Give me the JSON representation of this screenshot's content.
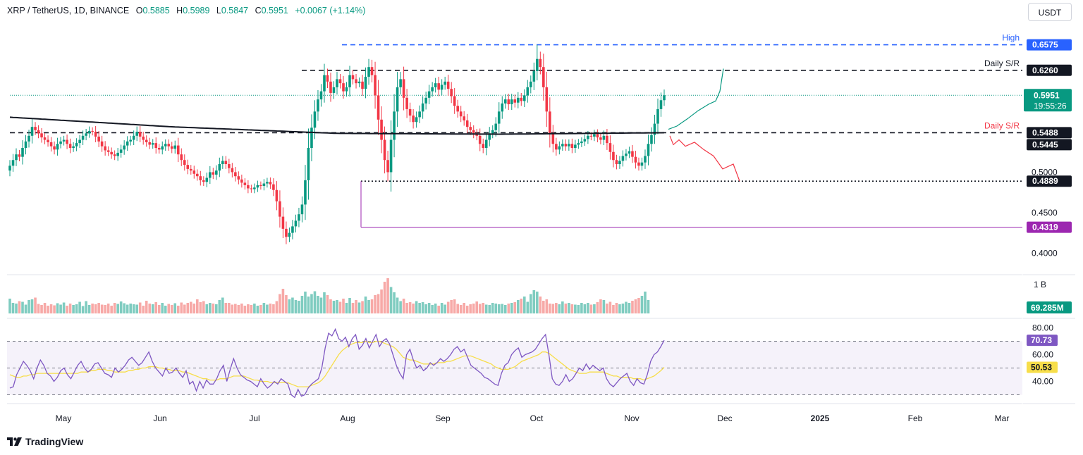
{
  "header": {
    "symbol": "XRP / TetherUS, 1D, BINANCE",
    "open_label": "O",
    "open": "0.5885",
    "high_label": "H",
    "high": "0.5989",
    "low_label": "L",
    "low": "0.5847",
    "close_label": "C",
    "close": "0.5951",
    "change": "+0.0067 (+1.14%)"
  },
  "currency_button": "USDT",
  "branding": {
    "name": "TradingView",
    "icon": "tradingview-logo-icon"
  },
  "colors": {
    "up": "#089981",
    "down": "#f23645",
    "ma": "#131722",
    "rsi": "#7e57c2",
    "rsi_ma": "#f7de4a",
    "high_line": "#2962ff",
    "support": "#9c27b0"
  },
  "chart_data": [
    {
      "type": "candlestick",
      "x_labels": [
        "May",
        "Jun",
        "Jul",
        "Aug",
        "Sep",
        "Oct",
        "Nov",
        "Dec",
        "2025",
        "Feb",
        "Mar"
      ],
      "y_ticks": [
        "0.5000",
        "0.4500",
        "0.4000"
      ],
      "ylim": [
        0.375,
        0.665
      ],
      "grid": false,
      "price_levels": [
        {
          "value": 0.6575,
          "label": "0.6575",
          "annotation": "High",
          "style": "dashed",
          "color": "#2962ff"
        },
        {
          "value": 0.626,
          "label": "0.6260",
          "annotation": "Daily S/R",
          "style": "dashed",
          "color": "#131722"
        },
        {
          "value": 0.5488,
          "label": "0.5488",
          "annotation": "Daily S/R",
          "style": "dashed",
          "color": "#131722"
        },
        {
          "value": 0.5445,
          "label": "0.5445",
          "annotation": "",
          "style": "none",
          "color": "#131722"
        },
        {
          "value": 0.4889,
          "label": "0.4889",
          "annotation": "",
          "style": "dotted",
          "color": "#131722"
        },
        {
          "value": 0.4319,
          "label": "0.4319",
          "annotation": "",
          "style": "solid",
          "color": "#9c27b0"
        }
      ],
      "last_price": {
        "value": 0.5951,
        "label": "0.5951",
        "countdown": "19:55:26"
      },
      "ohlc_current": {
        "open": 0.5885,
        "high": 0.5989,
        "low": 0.5847,
        "close": 0.5951
      },
      "close_series": [
        0.508,
        0.515,
        0.522,
        0.519,
        0.53,
        0.538,
        0.545,
        0.556,
        0.552,
        0.548,
        0.543,
        0.54,
        0.537,
        0.532,
        0.528,
        0.535,
        0.538,
        0.54,
        0.535,
        0.53,
        0.532,
        0.536,
        0.54,
        0.545,
        0.548,
        0.551,
        0.55,
        0.544,
        0.538,
        0.532,
        0.527,
        0.525,
        0.522,
        0.52,
        0.524,
        0.528,
        0.533,
        0.538,
        0.54,
        0.545,
        0.55,
        0.544,
        0.54,
        0.537,
        0.534,
        0.536,
        0.53,
        0.528,
        0.532,
        0.535,
        0.532,
        0.529,
        0.533,
        0.522,
        0.515,
        0.509,
        0.504,
        0.502,
        0.498,
        0.495,
        0.49,
        0.488,
        0.493,
        0.5,
        0.497,
        0.502,
        0.51,
        0.514,
        0.51,
        0.505,
        0.5,
        0.495,
        0.491,
        0.487,
        0.484,
        0.48,
        0.479,
        0.481,
        0.484,
        0.483,
        0.486,
        0.488,
        0.485,
        0.478,
        0.464,
        0.445,
        0.43,
        0.42,
        0.425,
        0.433,
        0.44,
        0.448,
        0.46,
        0.49,
        0.53,
        0.555,
        0.575,
        0.59,
        0.6,
        0.62,
        0.612,
        0.598,
        0.605,
        0.615,
        0.61,
        0.6,
        0.605,
        0.62,
        0.615,
        0.61,
        0.612,
        0.603,
        0.618,
        0.63,
        0.62,
        0.595,
        0.565,
        0.54,
        0.515,
        0.5,
        0.54,
        0.575,
        0.605,
        0.615,
        0.592,
        0.578,
        0.57,
        0.562,
        0.568,
        0.575,
        0.585,
        0.592,
        0.6,
        0.605,
        0.61,
        0.602,
        0.608,
        0.612,
        0.603,
        0.594,
        0.582,
        0.575,
        0.569,
        0.564,
        0.556,
        0.552,
        0.548,
        0.545,
        0.535,
        0.53,
        0.54,
        0.548,
        0.552,
        0.56,
        0.575,
        0.585,
        0.59,
        0.584,
        0.59,
        0.586,
        0.592,
        0.588,
        0.595,
        0.605,
        0.612,
        0.625,
        0.64,
        0.63,
        0.605,
        0.575,
        0.548,
        0.535,
        0.528,
        0.532,
        0.535,
        0.532,
        0.535,
        0.53,
        0.534,
        0.536,
        0.538,
        0.541,
        0.545,
        0.544,
        0.547,
        0.543,
        0.54,
        0.545,
        0.536,
        0.525,
        0.515,
        0.51,
        0.514,
        0.52,
        0.523,
        0.526,
        0.519,
        0.512,
        0.508,
        0.512,
        0.52,
        0.535,
        0.546,
        0.56,
        0.578,
        0.589,
        0.5951
      ],
      "moving_average": [
        {
          "value": 0.568,
          "at": "start"
        },
        {
          "value": 0.556,
          "at": "Jul"
        },
        {
          "value": 0.548,
          "at": "Aug"
        },
        {
          "value": 0.547,
          "at": "Oct"
        },
        {
          "value": 0.5488,
          "at": "last"
        }
      ],
      "projections": [
        {
          "direction": "up",
          "color": "#089981",
          "to_value": 0.628,
          "to": "Dec"
        },
        {
          "direction": "down",
          "color": "#f23645",
          "to_value": 0.4889,
          "to": "Dec"
        }
      ]
    },
    {
      "type": "bar",
      "name": "Volume",
      "y_ticks": [
        "1 B"
      ],
      "last_label": "69.285M",
      "values_relative": [
        0.42,
        0.3,
        0.28,
        0.35,
        0.33,
        0.25,
        0.38,
        0.4,
        0.45,
        0.27,
        0.24,
        0.3,
        0.22,
        0.26,
        0.23,
        0.29,
        0.25,
        0.31,
        0.22,
        0.28,
        0.24,
        0.26,
        0.33,
        0.21,
        0.35,
        0.24,
        0.28,
        0.26,
        0.3,
        0.25,
        0.24,
        0.28,
        0.22,
        0.3,
        0.27,
        0.34,
        0.29,
        0.25,
        0.28,
        0.26,
        0.25,
        0.31,
        0.22,
        0.36,
        0.28,
        0.26,
        0.32,
        0.24,
        0.3,
        0.22,
        0.27,
        0.24,
        0.29,
        0.22,
        0.31,
        0.25,
        0.3,
        0.33,
        0.28,
        0.4,
        0.32,
        0.35,
        0.26,
        0.3,
        0.28,
        0.26,
        0.38,
        0.45,
        0.3,
        0.3,
        0.25,
        0.27,
        0.24,
        0.28,
        0.22,
        0.26,
        0.24,
        0.28,
        0.22,
        0.24,
        0.3,
        0.25,
        0.28,
        0.26,
        0.35,
        0.55,
        0.7,
        0.52,
        0.4,
        0.45,
        0.38,
        0.36,
        0.5,
        0.62,
        0.48,
        0.55,
        0.63,
        0.5,
        0.45,
        0.6,
        0.52,
        0.4,
        0.36,
        0.38,
        0.33,
        0.42,
        0.3,
        0.44,
        0.3,
        0.38,
        0.31,
        0.35,
        0.48,
        0.38,
        0.4,
        0.52,
        0.55,
        0.68,
        0.9,
        1.0,
        0.75,
        0.6,
        0.45,
        0.35,
        0.42,
        0.3,
        0.32,
        0.28,
        0.35,
        0.3,
        0.32,
        0.26,
        0.3,
        0.24,
        0.28,
        0.22,
        0.3,
        0.25,
        0.33,
        0.38,
        0.4,
        0.27,
        0.24,
        0.3,
        0.22,
        0.26,
        0.28,
        0.34,
        0.27,
        0.3,
        0.25,
        0.24,
        0.3,
        0.28,
        0.26,
        0.27,
        0.24,
        0.28,
        0.3,
        0.32,
        0.38,
        0.42,
        0.48,
        0.33,
        0.55,
        0.66,
        0.62,
        0.48,
        0.36,
        0.4,
        0.28,
        0.27,
        0.3,
        0.26,
        0.34,
        0.28,
        0.3,
        0.26,
        0.25,
        0.24,
        0.3,
        0.26,
        0.3,
        0.25,
        0.26,
        0.32,
        0.4,
        0.38,
        0.28,
        0.33,
        0.24,
        0.3,
        0.26,
        0.28,
        0.33,
        0.3,
        0.36,
        0.4,
        0.44,
        0.5,
        0.62,
        0.38
      ]
    },
    {
      "type": "line",
      "name": "RSI",
      "y_ticks": [
        "80.00",
        "60.00",
        "40.00"
      ],
      "ylim": [
        25,
        85
      ],
      "bands": {
        "upper": 70,
        "middle": 50,
        "lower": 30
      },
      "rsi_value": "70.73",
      "rsi_ma_value": "50.53",
      "rsi": [
        35,
        36,
        45,
        50,
        55,
        52,
        48,
        42,
        50,
        56,
        52,
        46,
        44,
        40,
        43,
        48,
        50,
        45,
        42,
        47,
        52,
        55,
        50,
        47,
        49,
        53,
        54,
        50,
        46,
        45,
        43,
        50,
        47,
        49,
        52,
        56,
        58,
        55,
        52,
        54,
        58,
        62,
        55,
        50,
        47,
        44,
        50,
        46,
        47,
        50,
        46,
        43,
        48,
        38,
        40,
        33,
        40,
        35,
        41,
        38,
        38,
        42,
        48,
        52,
        40,
        49,
        57,
        50,
        45,
        43,
        41,
        40,
        38,
        36,
        42,
        38,
        35,
        37,
        40,
        38,
        42,
        40,
        38,
        30,
        28,
        34,
        29,
        30,
        35,
        38,
        40,
        42,
        50,
        65,
        76,
        74,
        79,
        72,
        70,
        73,
        66,
        72,
        75,
        64,
        67,
        72,
        65,
        70,
        75,
        66,
        70,
        72,
        68,
        60,
        52,
        46,
        42,
        60,
        64,
        56,
        50,
        52,
        48,
        50,
        54,
        52,
        54,
        57,
        55,
        57,
        60,
        64,
        66,
        62,
        64,
        58,
        52,
        50,
        48,
        46,
        43,
        42,
        40,
        38,
        37,
        46,
        52,
        54,
        60,
        63,
        65,
        58,
        60,
        61,
        62,
        64,
        68,
        72,
        75,
        60,
        42,
        38,
        37,
        40,
        45,
        40,
        42,
        46,
        50,
        48,
        53,
        49,
        52,
        50,
        48,
        50,
        42,
        38,
        36,
        39,
        42,
        44,
        46,
        40,
        37,
        42,
        39,
        38,
        45,
        55,
        60,
        62,
        66,
        70.73
      ],
      "rsi_ma": [
        45,
        44,
        43,
        43,
        44,
        44,
        45,
        45,
        46,
        46,
        46,
        46,
        46,
        46,
        46,
        46,
        46,
        46,
        46,
        46,
        46,
        47,
        47,
        47,
        48,
        48,
        49,
        49,
        49,
        48,
        48,
        47,
        47,
        47,
        47,
        48,
        48,
        49,
        49,
        50,
        50,
        51,
        51,
        51,
        50,
        50,
        49,
        49,
        48,
        48,
        48,
        47,
        47,
        46,
        45,
        44,
        43,
        42,
        42,
        41,
        41,
        41,
        42,
        42,
        42,
        43,
        44,
        44,
        44,
        44,
        43,
        42,
        41,
        41,
        40,
        40,
        40,
        39,
        39,
        39,
        39,
        39,
        39,
        38,
        37,
        36,
        36,
        36,
        36,
        37,
        38,
        39,
        41,
        44,
        48,
        52,
        56,
        60,
        63,
        65,
        67,
        68,
        69,
        69,
        69,
        70,
        69,
        69,
        70,
        70,
        69,
        68,
        67,
        66,
        64,
        61,
        58,
        57,
        56,
        56,
        55,
        54,
        53,
        53,
        53,
        53,
        54,
        54,
        54,
        55,
        55,
        56,
        57,
        58,
        59,
        59,
        59,
        58,
        57,
        56,
        55,
        54,
        53,
        51,
        50,
        49,
        49,
        49,
        50,
        51,
        53,
        55,
        56,
        57,
        58,
        59,
        60,
        62,
        62,
        61,
        59,
        57,
        55,
        53,
        51,
        49,
        48,
        47,
        46,
        46,
        46,
        47,
        47,
        47,
        47,
        47,
        46,
        45,
        44,
        44,
        43,
        43,
        43,
        43,
        42,
        42,
        42,
        41,
        42,
        43,
        44,
        46,
        48,
        50.53
      ]
    }
  ]
}
